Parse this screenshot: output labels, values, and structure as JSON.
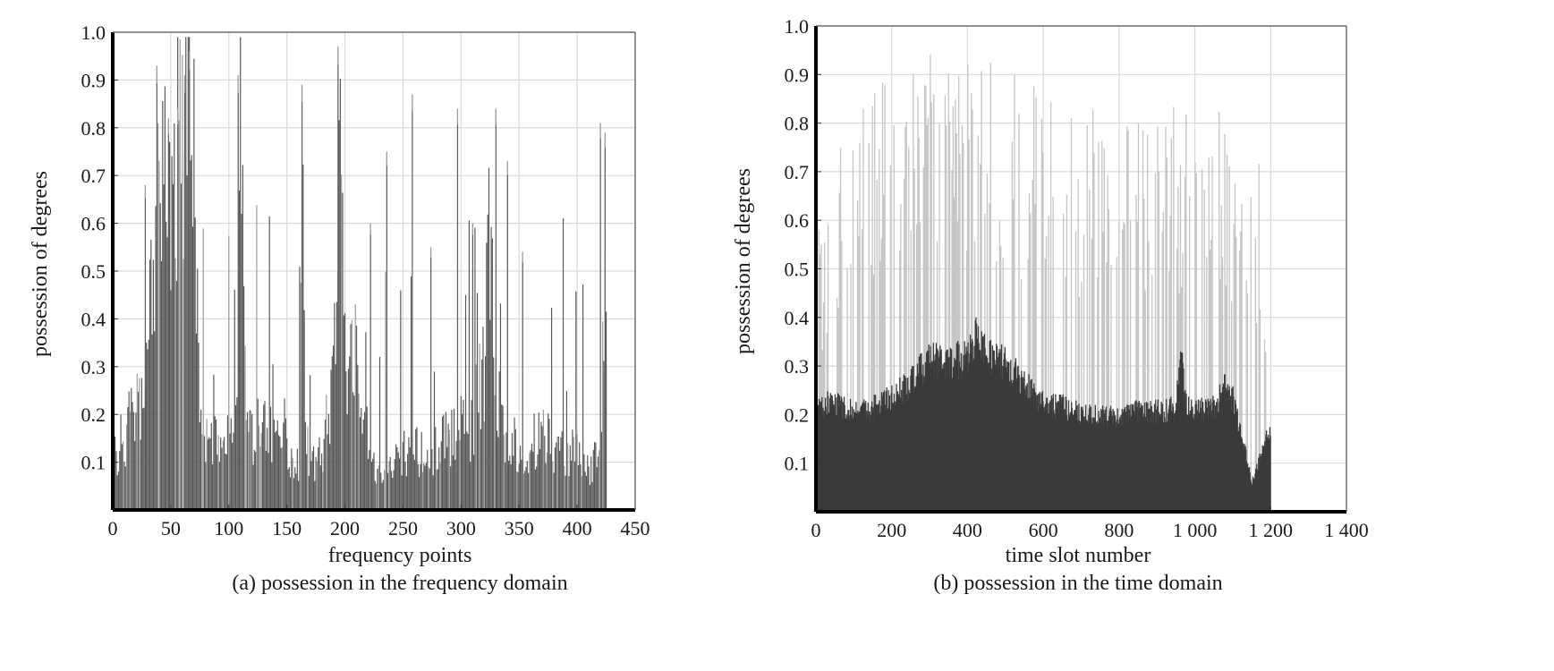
{
  "chart_data": [
    {
      "type": "bar",
      "caption": "(a) possession in the frequency domain",
      "xlabel": "frequency points",
      "ylabel": "possession of degrees",
      "xlim": [
        0,
        450
      ],
      "ylim": [
        0,
        1.0
      ],
      "xticks": [
        "0",
        "50",
        "100",
        "150",
        "200",
        "250",
        "300",
        "350",
        "400",
        "450"
      ],
      "yticks": [
        "0.1",
        "0.2",
        "0.3",
        "0.4",
        "0.5",
        "0.6",
        "0.7",
        "0.8",
        "0.9",
        "1.0"
      ],
      "grid": true,
      "series_color": "#555555",
      "spike_color": "#9a9a9a",
      "profile": {
        "x": [
          0,
          5,
          10,
          20,
          30,
          35,
          40,
          45,
          50,
          55,
          60,
          65,
          70,
          75,
          80,
          90,
          100,
          105,
          110,
          115,
          120,
          130,
          140,
          150,
          155,
          160,
          163,
          167,
          170,
          180,
          190,
          195,
          200,
          205,
          210,
          215,
          220,
          230,
          240,
          250,
          260,
          270,
          280,
          290,
          300,
          310,
          320,
          325,
          330,
          335,
          340,
          350,
          360,
          370,
          380,
          390,
          400,
          410,
          415,
          420,
          425
        ],
        "y": [
          0.1,
          0.13,
          0.16,
          0.2,
          0.26,
          0.58,
          0.64,
          0.62,
          0.68,
          0.75,
          0.82,
          0.84,
          0.78,
          0.18,
          0.14,
          0.14,
          0.17,
          0.14,
          0.79,
          0.18,
          0.16,
          0.17,
          0.17,
          0.16,
          0.09,
          0.1,
          0.86,
          0.14,
          0.1,
          0.12,
          0.26,
          0.88,
          0.3,
          0.34,
          0.36,
          0.24,
          0.14,
          0.06,
          0.1,
          0.13,
          0.12,
          0.12,
          0.13,
          0.15,
          0.17,
          0.18,
          0.3,
          0.64,
          0.32,
          0.2,
          0.14,
          0.13,
          0.14,
          0.15,
          0.13,
          0.12,
          0.12,
          0.08,
          0.12,
          0.1,
          0.6
        ]
      },
      "peaks": [
        {
          "x": 38,
          "y": 0.93
        },
        {
          "x": 48,
          "y": 0.82
        },
        {
          "x": 56,
          "y": 0.84
        },
        {
          "x": 62,
          "y": 0.91
        },
        {
          "x": 66,
          "y": 0.96
        },
        {
          "x": 108,
          "y": 0.91
        },
        {
          "x": 163,
          "y": 0.89
        },
        {
          "x": 194,
          "y": 0.97
        },
        {
          "x": 258,
          "y": 0.87
        },
        {
          "x": 297,
          "y": 0.84
        },
        {
          "x": 330,
          "y": 0.84
        },
        {
          "x": 340,
          "y": 0.73
        },
        {
          "x": 420,
          "y": 0.81
        },
        {
          "x": 424,
          "y": 0.79
        },
        {
          "x": 236,
          "y": 0.75
        },
        {
          "x": 222,
          "y": 0.6
        },
        {
          "x": 274,
          "y": 0.55
        },
        {
          "x": 310,
          "y": 0.6
        },
        {
          "x": 353,
          "y": 0.54
        },
        {
          "x": 28,
          "y": 0.68
        }
      ]
    },
    {
      "type": "bar",
      "caption": "(b) possession in the time domain",
      "xlabel": "time slot number",
      "ylabel": "possession of degrees",
      "xlim": [
        0,
        1400
      ],
      "ylim": [
        0,
        1.0
      ],
      "xticks": [
        "0",
        "200",
        "400",
        "600",
        "800",
        "1 000",
        "1 200",
        "1 400"
      ],
      "yticks": [
        "0.1",
        "0.2",
        "0.3",
        "0.4",
        "0.5",
        "0.6",
        "0.7",
        "0.8",
        "0.9",
        "1.0"
      ],
      "grid": true,
      "series_color": "#3a3a3a",
      "spike_color": "#c4c4c4",
      "base_profile": {
        "x": [
          0,
          50,
          100,
          150,
          200,
          250,
          300,
          350,
          400,
          430,
          450,
          500,
          550,
          600,
          650,
          700,
          750,
          800,
          850,
          900,
          950,
          965,
          980,
          1000,
          1050,
          1080,
          1100,
          1130,
          1150,
          1175,
          1200
        ],
        "y": [
          0.22,
          0.23,
          0.21,
          0.22,
          0.24,
          0.27,
          0.32,
          0.31,
          0.33,
          0.38,
          0.33,
          0.31,
          0.27,
          0.23,
          0.22,
          0.21,
          0.2,
          0.2,
          0.21,
          0.21,
          0.22,
          0.33,
          0.22,
          0.21,
          0.22,
          0.26,
          0.24,
          0.14,
          0.06,
          0.12,
          0.18
        ]
      },
      "envelope_profile": {
        "x": [
          0,
          50,
          100,
          150,
          200,
          250,
          300,
          350,
          400,
          450,
          500,
          550,
          600,
          650,
          700,
          750,
          800,
          850,
          900,
          950,
          1000,
          1050,
          1100,
          1150,
          1180,
          1200
        ],
        "y": [
          0.55,
          0.7,
          0.78,
          0.83,
          0.86,
          0.88,
          0.9,
          0.89,
          0.91,
          0.9,
          0.88,
          0.86,
          0.83,
          0.81,
          0.8,
          0.79,
          0.8,
          0.8,
          0.8,
          0.8,
          0.82,
          0.83,
          0.75,
          0.62,
          0.74,
          0.2
        ]
      }
    }
  ]
}
